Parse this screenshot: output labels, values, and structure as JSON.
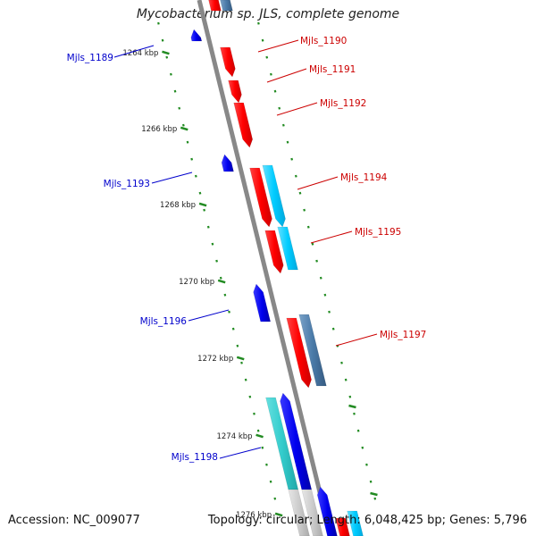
{
  "title": "Mycobacterium sp. JLS, complete genome",
  "accession": "Accession: NC_009077",
  "summary": "Topology: circular; Length: 6,048,425 bp; Genes: 5,796",
  "colors": {
    "forward_cds": "#ff0000",
    "reverse_cds": "#0000ee",
    "forward_feature": "#00ccff",
    "reverse_feature": "#4a7aa8",
    "teal_feature": "#33cccc",
    "backbone": "#888888",
    "tick": "#228b22"
  },
  "ticks": [
    {
      "label": "1264 kbp"
    },
    {
      "label": "1266 kbp"
    },
    {
      "label": "1268 kbp"
    },
    {
      "label": "1270 kbp"
    },
    {
      "label": "1272 kbp"
    },
    {
      "label": "1274 kbp"
    },
    {
      "label": "1276 kbp"
    }
  ],
  "genes": [
    {
      "name": "Mjls_1189",
      "strand": "reverse"
    },
    {
      "name": "Mjls_1190",
      "strand": "forward"
    },
    {
      "name": "Mjls_1191",
      "strand": "forward"
    },
    {
      "name": "Mjls_1192",
      "strand": "forward"
    },
    {
      "name": "Mjls_1193",
      "strand": "reverse"
    },
    {
      "name": "Mjls_1194",
      "strand": "forward"
    },
    {
      "name": "Mjls_1195",
      "strand": "forward"
    },
    {
      "name": "Mjls_1196",
      "strand": "reverse"
    },
    {
      "name": "Mjls_1197",
      "strand": "forward"
    },
    {
      "name": "Mjls_1198",
      "strand": "reverse"
    }
  ]
}
